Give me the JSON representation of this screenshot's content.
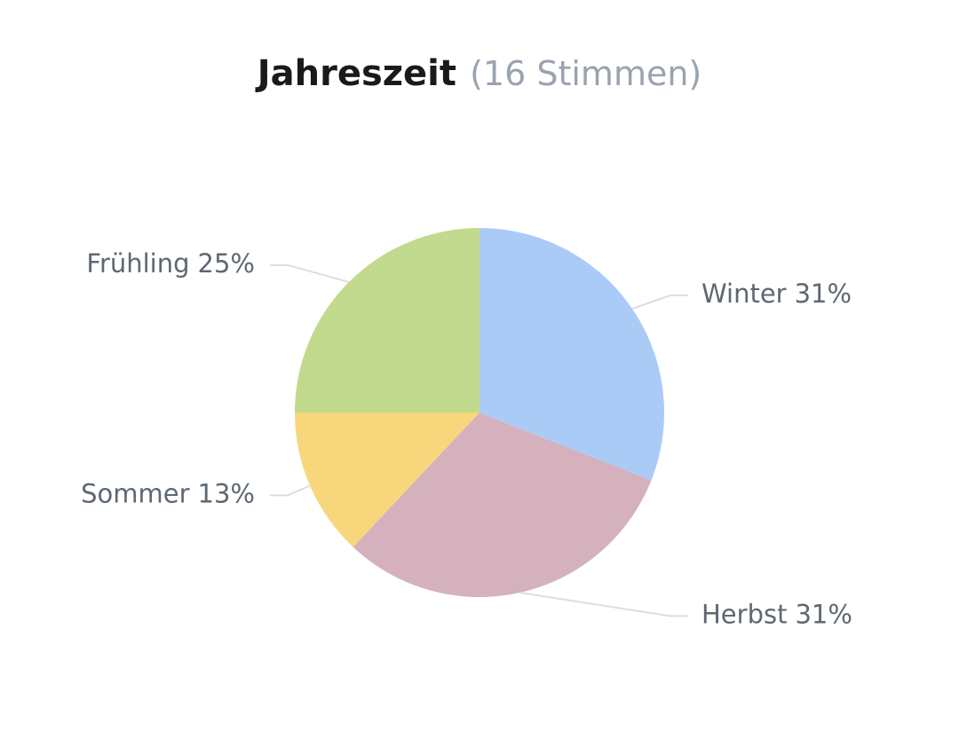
{
  "chart_data": {
    "type": "pie",
    "title": "Jahreszeit",
    "subtitle": "(16 Stimmen)",
    "categories": [
      "Winter",
      "Herbst",
      "Sommer",
      "Frühling"
    ],
    "values": [
      31,
      31,
      13,
      25
    ],
    "value_labels": [
      "31%",
      "31%",
      "13%",
      "25%"
    ],
    "colors": [
      "#abcbf7",
      "#d4b1bd",
      "#f8d77c",
      "#c2da8d"
    ]
  }
}
